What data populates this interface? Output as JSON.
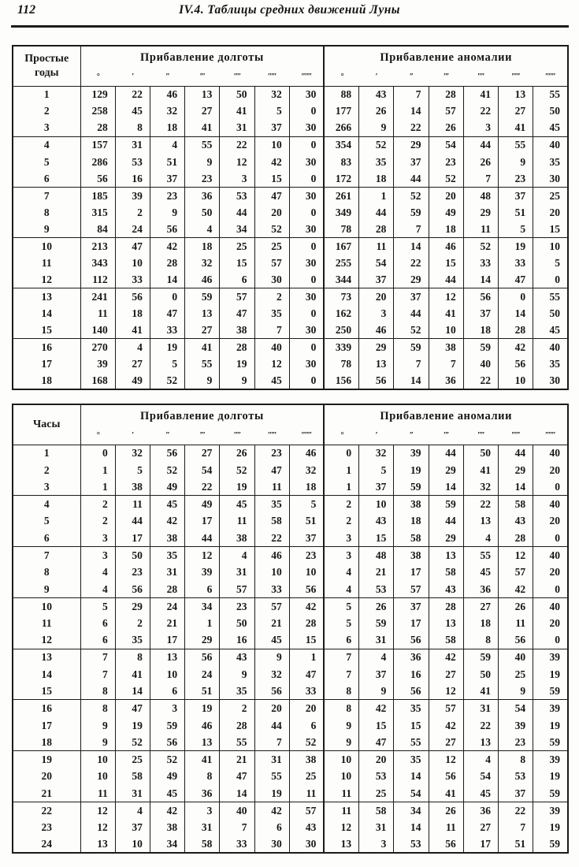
{
  "page": {
    "page_number": "112",
    "header_title": "IV.4. Таблицы средних движений Луны"
  },
  "tables": [
    {
      "id": "years",
      "row_header_label": "Простые годы",
      "group1_label": "Прибавление долготы",
      "group2_label": "Прибавление аномалии",
      "unit_headers": [
        "°",
        "′",
        "′′",
        "′′′",
        "′′′′",
        "′′′′′",
        "′′′′′′"
      ],
      "rows": [
        {
          "key": "1",
          "longitude": [
            129,
            22,
            46,
            13,
            50,
            32,
            30
          ],
          "anomaly": [
            88,
            43,
            7,
            28,
            41,
            13,
            55
          ]
        },
        {
          "key": "2",
          "longitude": [
            258,
            45,
            32,
            27,
            41,
            5,
            0
          ],
          "anomaly": [
            177,
            26,
            14,
            57,
            22,
            27,
            50
          ]
        },
        {
          "key": "3",
          "longitude": [
            28,
            8,
            18,
            41,
            31,
            37,
            30
          ],
          "anomaly": [
            266,
            9,
            22,
            26,
            3,
            41,
            45
          ]
        },
        {
          "key": "4",
          "longitude": [
            157,
            31,
            4,
            55,
            22,
            10,
            0
          ],
          "anomaly": [
            354,
            52,
            29,
            54,
            44,
            55,
            40
          ]
        },
        {
          "key": "5",
          "longitude": [
            286,
            53,
            51,
            9,
            12,
            42,
            30
          ],
          "anomaly": [
            83,
            35,
            37,
            23,
            26,
            9,
            35
          ]
        },
        {
          "key": "6",
          "longitude": [
            56,
            16,
            37,
            23,
            3,
            15,
            0
          ],
          "anomaly": [
            172,
            18,
            44,
            52,
            7,
            23,
            30
          ]
        },
        {
          "key": "7",
          "longitude": [
            185,
            39,
            23,
            36,
            53,
            47,
            30
          ],
          "anomaly": [
            261,
            1,
            52,
            20,
            48,
            37,
            25
          ]
        },
        {
          "key": "8",
          "longitude": [
            315,
            2,
            9,
            50,
            44,
            20,
            0
          ],
          "anomaly": [
            349,
            44,
            59,
            49,
            29,
            51,
            20
          ]
        },
        {
          "key": "9",
          "longitude": [
            84,
            24,
            56,
            4,
            34,
            52,
            30
          ],
          "anomaly": [
            78,
            28,
            7,
            18,
            11,
            5,
            15
          ]
        },
        {
          "key": "10",
          "longitude": [
            213,
            47,
            42,
            18,
            25,
            25,
            0
          ],
          "anomaly": [
            167,
            11,
            14,
            46,
            52,
            19,
            10
          ]
        },
        {
          "key": "11",
          "longitude": [
            343,
            10,
            28,
            32,
            15,
            57,
            30
          ],
          "anomaly": [
            255,
            54,
            22,
            15,
            33,
            33,
            5
          ]
        },
        {
          "key": "12",
          "longitude": [
            112,
            33,
            14,
            46,
            6,
            30,
            0
          ],
          "anomaly": [
            344,
            37,
            29,
            44,
            14,
            47,
            0
          ]
        },
        {
          "key": "13",
          "longitude": [
            241,
            56,
            0,
            59,
            57,
            2,
            30
          ],
          "anomaly": [
            73,
            20,
            37,
            12,
            56,
            0,
            55
          ]
        },
        {
          "key": "14",
          "longitude": [
            11,
            18,
            47,
            13,
            47,
            35,
            0
          ],
          "anomaly": [
            162,
            3,
            44,
            41,
            37,
            14,
            50
          ]
        },
        {
          "key": "15",
          "longitude": [
            140,
            41,
            33,
            27,
            38,
            7,
            30
          ],
          "anomaly": [
            250,
            46,
            52,
            10,
            18,
            28,
            45
          ]
        },
        {
          "key": "16",
          "longitude": [
            270,
            4,
            19,
            41,
            28,
            40,
            0
          ],
          "anomaly": [
            339,
            29,
            59,
            38,
            59,
            42,
            40
          ]
        },
        {
          "key": "17",
          "longitude": [
            39,
            27,
            5,
            55,
            19,
            12,
            30
          ],
          "anomaly": [
            78,
            13,
            7,
            7,
            40,
            56,
            35
          ]
        },
        {
          "key": "18",
          "longitude": [
            168,
            49,
            52,
            9,
            9,
            45,
            0
          ],
          "anomaly": [
            156,
            56,
            14,
            36,
            22,
            10,
            30
          ]
        }
      ]
    },
    {
      "id": "hours",
      "row_header_label": "Часы",
      "group1_label": "Прибавление долготы",
      "group2_label": "Прибавление аномалии",
      "unit_headers": [
        "°",
        "′",
        "′′",
        "′′′",
        "′′′′",
        "′′′′′",
        "′′′′′′"
      ],
      "rows": [
        {
          "key": "1",
          "longitude": [
            0,
            32,
            56,
            27,
            26,
            23,
            46
          ],
          "anomaly": [
            0,
            32,
            39,
            44,
            50,
            44,
            40
          ]
        },
        {
          "key": "2",
          "longitude": [
            1,
            5,
            52,
            54,
            52,
            47,
            32
          ],
          "anomaly": [
            1,
            5,
            19,
            29,
            41,
            29,
            20
          ]
        },
        {
          "key": "3",
          "longitude": [
            1,
            38,
            49,
            22,
            19,
            11,
            18
          ],
          "anomaly": [
            1,
            37,
            59,
            14,
            32,
            14,
            0
          ]
        },
        {
          "key": "4",
          "longitude": [
            2,
            11,
            45,
            49,
            45,
            35,
            5
          ],
          "anomaly": [
            2,
            10,
            38,
            59,
            22,
            58,
            40
          ]
        },
        {
          "key": "5",
          "longitude": [
            2,
            44,
            42,
            17,
            11,
            58,
            51
          ],
          "anomaly": [
            2,
            43,
            18,
            44,
            13,
            43,
            20
          ]
        },
        {
          "key": "6",
          "longitude": [
            3,
            17,
            38,
            44,
            38,
            22,
            37
          ],
          "anomaly": [
            3,
            15,
            58,
            29,
            4,
            28,
            0
          ]
        },
        {
          "key": "7",
          "longitude": [
            3,
            50,
            35,
            12,
            4,
            46,
            23
          ],
          "anomaly": [
            3,
            48,
            38,
            13,
            55,
            12,
            40
          ]
        },
        {
          "key": "8",
          "longitude": [
            4,
            23,
            31,
            39,
            31,
            10,
            10
          ],
          "anomaly": [
            4,
            21,
            17,
            58,
            45,
            57,
            20
          ]
        },
        {
          "key": "9",
          "longitude": [
            4,
            56,
            28,
            6,
            57,
            33,
            56
          ],
          "anomaly": [
            4,
            53,
            57,
            43,
            36,
            42,
            0
          ]
        },
        {
          "key": "10",
          "longitude": [
            5,
            29,
            24,
            34,
            23,
            57,
            42
          ],
          "anomaly": [
            5,
            26,
            37,
            28,
            27,
            26,
            40
          ]
        },
        {
          "key": "11",
          "longitude": [
            6,
            2,
            21,
            1,
            50,
            21,
            28
          ],
          "anomaly": [
            5,
            59,
            17,
            13,
            18,
            11,
            20
          ]
        },
        {
          "key": "12",
          "longitude": [
            6,
            35,
            17,
            29,
            16,
            45,
            15
          ],
          "anomaly": [
            6,
            31,
            56,
            58,
            8,
            56,
            0
          ]
        },
        {
          "key": "13",
          "longitude": [
            7,
            8,
            13,
            56,
            43,
            9,
            1
          ],
          "anomaly": [
            7,
            4,
            36,
            42,
            59,
            40,
            39
          ]
        },
        {
          "key": "14",
          "longitude": [
            7,
            41,
            10,
            24,
            9,
            32,
            47
          ],
          "anomaly": [
            7,
            37,
            16,
            27,
            50,
            25,
            19
          ]
        },
        {
          "key": "15",
          "longitude": [
            8,
            14,
            6,
            51,
            35,
            56,
            33
          ],
          "anomaly": [
            8,
            9,
            56,
            12,
            41,
            9,
            59
          ]
        },
        {
          "key": "16",
          "longitude": [
            8,
            47,
            3,
            19,
            2,
            20,
            20
          ],
          "anomaly": [
            8,
            42,
            35,
            57,
            31,
            54,
            39
          ]
        },
        {
          "key": "17",
          "longitude": [
            9,
            19,
            59,
            46,
            28,
            44,
            6
          ],
          "anomaly": [
            9,
            15,
            15,
            42,
            22,
            39,
            19
          ]
        },
        {
          "key": "18",
          "longitude": [
            9,
            52,
            56,
            13,
            55,
            7,
            52
          ],
          "anomaly": [
            9,
            47,
            55,
            27,
            13,
            23,
            59
          ]
        },
        {
          "key": "19",
          "longitude": [
            10,
            25,
            52,
            41,
            21,
            31,
            38
          ],
          "anomaly": [
            10,
            20,
            35,
            12,
            4,
            8,
            39
          ]
        },
        {
          "key": "20",
          "longitude": [
            10,
            58,
            49,
            8,
            47,
            55,
            25
          ],
          "anomaly": [
            10,
            53,
            14,
            56,
            54,
            53,
            19
          ]
        },
        {
          "key": "21",
          "longitude": [
            11,
            31,
            45,
            36,
            14,
            19,
            11
          ],
          "anomaly": [
            11,
            25,
            54,
            41,
            45,
            37,
            59
          ]
        },
        {
          "key": "22",
          "longitude": [
            12,
            4,
            42,
            3,
            40,
            42,
            57
          ],
          "anomaly": [
            11,
            58,
            34,
            26,
            36,
            22,
            39
          ]
        },
        {
          "key": "23",
          "longitude": [
            12,
            37,
            38,
            31,
            7,
            6,
            43
          ],
          "anomaly": [
            12,
            31,
            14,
            11,
            27,
            7,
            19
          ]
        },
        {
          "key": "24",
          "longitude": [
            13,
            10,
            34,
            58,
            33,
            30,
            30
          ],
          "anomaly": [
            13,
            3,
            53,
            56,
            17,
            51,
            59
          ]
        }
      ]
    }
  ]
}
